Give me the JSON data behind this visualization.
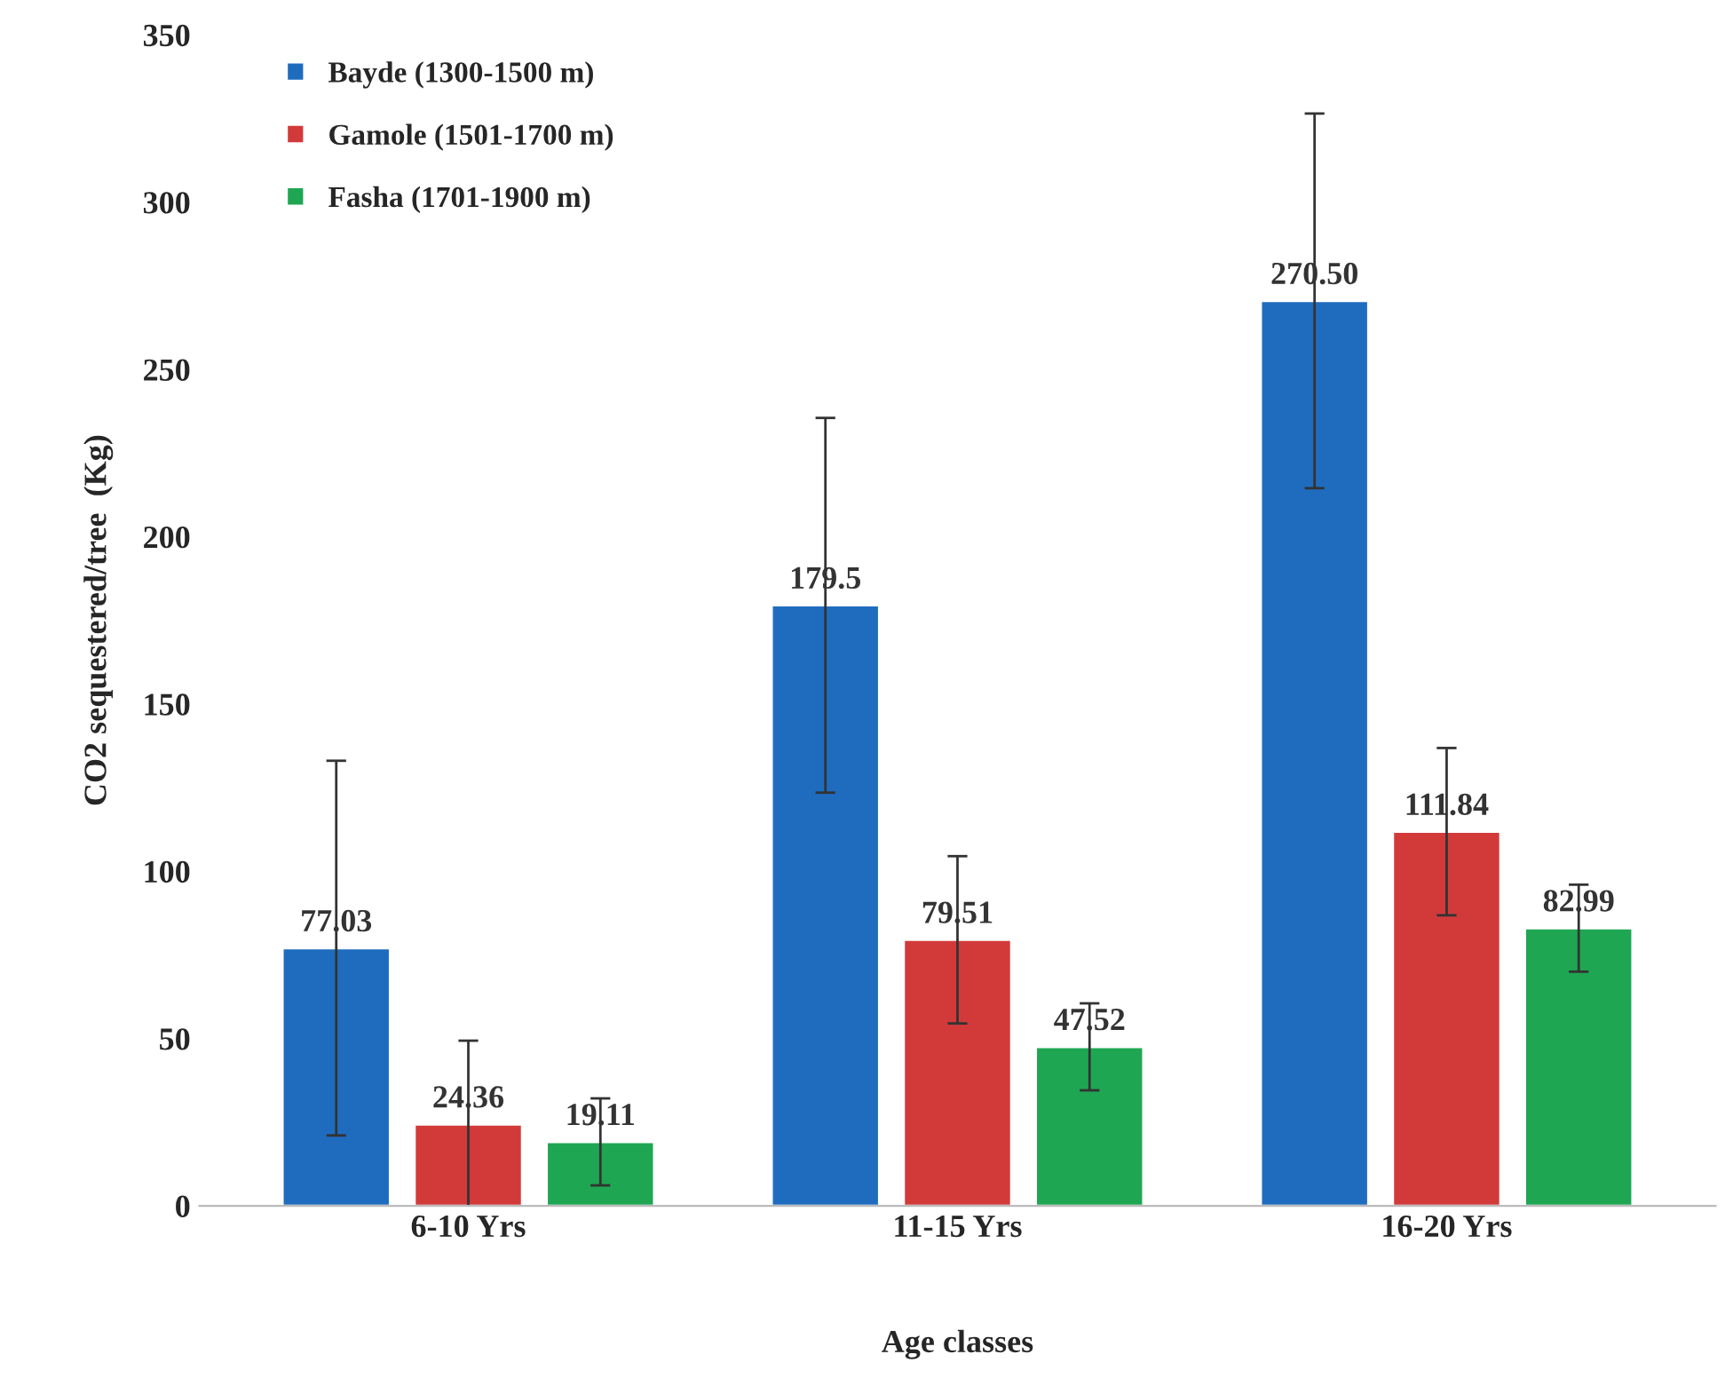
{
  "chart_data": {
    "type": "bar",
    "xlabel": "Age classes",
    "ylabel": "CO2 sequestered/tree  (Kg)",
    "categories": [
      "6-10 Yrs",
      "11-15 Yrs",
      "16-20 Yrs"
    ],
    "series": [
      {
        "name": "Bayde (1300-1500 m)",
        "color": "#1f6cbf",
        "values": [
          77.03,
          179.5,
          270.5
        ],
        "errors": [
          56,
          56,
          56
        ],
        "value_labels": [
          "77.03",
          "179.5",
          "270.50"
        ]
      },
      {
        "name": "Gamole (1501-1700 m)",
        "color": "#d23a3a",
        "values": [
          24.36,
          79.51,
          111.84
        ],
        "errors": [
          25,
          25,
          25
        ],
        "value_labels": [
          "24.36",
          "79.51",
          "111.84"
        ]
      },
      {
        "name": "Fasha (1701-1900 m)",
        "color": "#1fa653",
        "values": [
          19.11,
          47.52,
          82.99
        ],
        "errors": [
          13,
          13,
          13
        ],
        "value_labels": [
          "19.11",
          "47.52",
          "82.99"
        ]
      }
    ],
    "ylim": [
      0,
      350
    ],
    "yticks": [
      0,
      50,
      100,
      150,
      200,
      250,
      300,
      350
    ],
    "grid": false,
    "legend": "top left"
  }
}
